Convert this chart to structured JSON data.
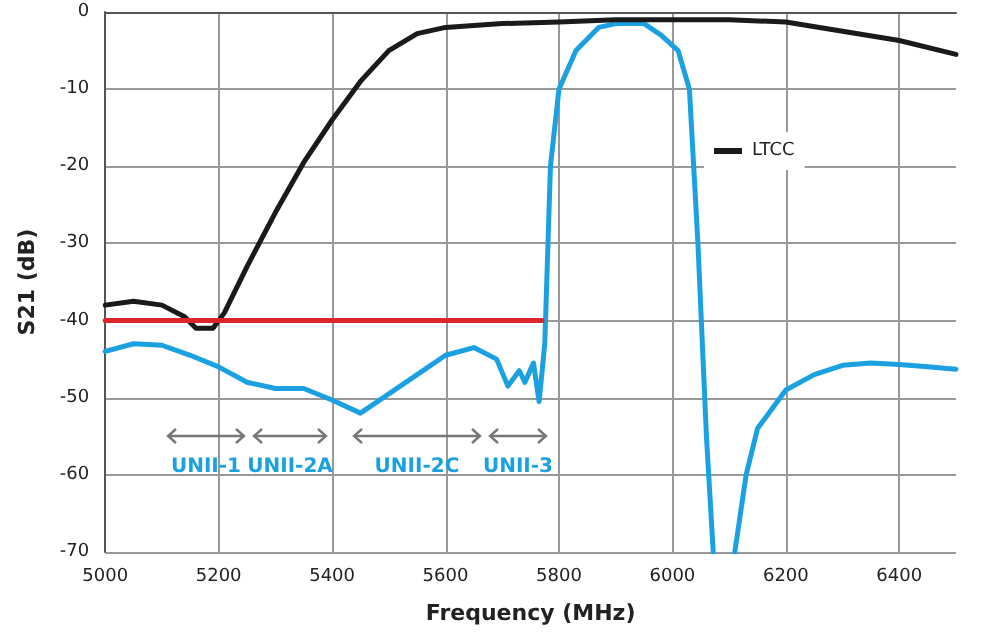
{
  "chart_data": {
    "type": "line",
    "xlabel": "Frequency (MHz)",
    "ylabel": "S21 (dB)",
    "xlim": [
      5000,
      6500
    ],
    "xticks": [
      5000,
      5200,
      5400,
      5600,
      5800,
      6000,
      6200,
      6400
    ],
    "ylim": [
      -70,
      0
    ],
    "yticks": [
      0,
      -10,
      -20,
      -30,
      -40,
      -50,
      -60,
      -70
    ],
    "grid": true,
    "legend": "right",
    "marker": "none",
    "line_style": "solid",
    "series": [
      {
        "color": "#1ba1e2",
        "x": [
          5000,
          5050,
          5100,
          5150,
          5200,
          5250,
          5300,
          5350,
          5400,
          5450,
          5500,
          5550,
          5600,
          5650,
          5690,
          5710,
          5730,
          5740,
          5755,
          5765,
          5775,
          5785,
          5800,
          5830,
          5870,
          5900,
          5950,
          5980,
          6010,
          6030,
          6045,
          6060,
          6072,
          6090,
          6110,
          6130,
          6150,
          6200,
          6250,
          6300,
          6350,
          6400,
          6450,
          6500
        ],
        "values": [
          -44,
          -43,
          -43.2,
          -44.5,
          -46,
          -48,
          -48.8,
          -48.8,
          -50.3,
          -52,
          -49.5,
          -47,
          -44.5,
          -43.5,
          -45,
          -48.5,
          -46.5,
          -48,
          -45.5,
          -50.5,
          -43,
          -20,
          -10,
          -5,
          -2,
          -1.5,
          -1.5,
          -3,
          -5,
          -10,
          -30,
          -55,
          -70,
          null,
          -70,
          -60,
          -54,
          -49,
          -47,
          -45.8,
          -45.5,
          -45.7,
          -46,
          -46.3
        ]
      },
      {
        "name": "LTCC",
        "color": "#1a1a1a",
        "x": [
          5000,
          5050,
          5100,
          5140,
          5160,
          5190,
          5210,
          5250,
          5300,
          5350,
          5400,
          5450,
          5500,
          5550,
          5600,
          5700,
          5800,
          5900,
          6000,
          6100,
          6200,
          6300,
          6400,
          6500
        ],
        "values": [
          -38,
          -37.5,
          -38,
          -39.5,
          -41,
          -41,
          -39,
          -33,
          -26,
          -19.5,
          -14,
          -9,
          -5,
          -2.8,
          -2,
          -1.5,
          -1.3,
          -1,
          -1,
          -1,
          -1.3,
          -2.5,
          -3.7,
          -5.5
        ]
      },
      {
        "color": "#d9262b",
        "x": [
          5000,
          5770
        ],
        "values": [
          -40,
          -40
        ]
      }
    ],
    "annotations": [
      "UNII-1",
      "UNII-2A",
      "UNII-2C",
      "UNII-3"
    ]
  }
}
